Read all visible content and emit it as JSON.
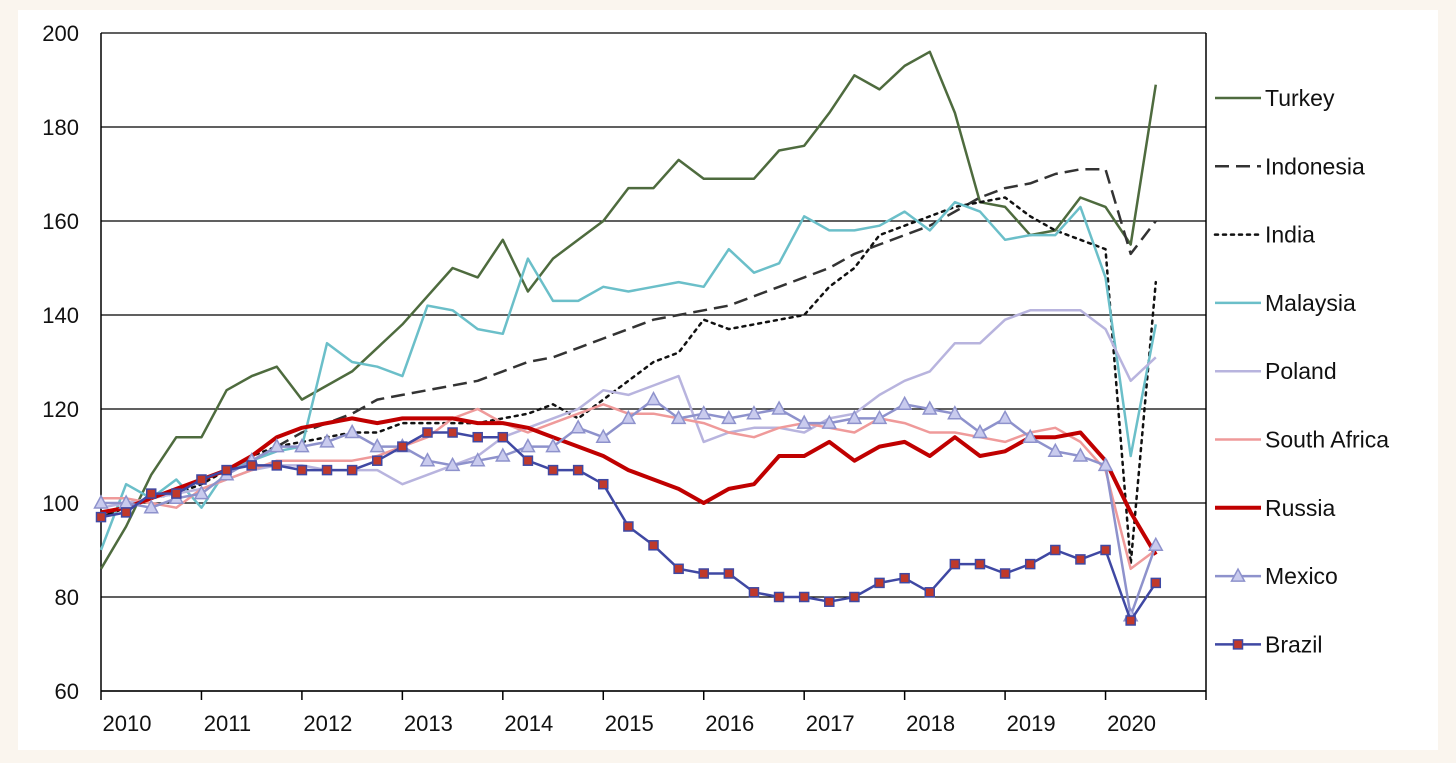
{
  "chart_data": {
    "type": "line",
    "title": "",
    "xlabel": "",
    "ylabel": "",
    "ylim": [
      60,
      200
    ],
    "xlim": [
      2010,
      2021
    ],
    "y_ticks": [
      60,
      80,
      100,
      120,
      140,
      160,
      180,
      200
    ],
    "x_ticks": [
      2010,
      2011,
      2012,
      2013,
      2014,
      2015,
      2016,
      2017,
      2018,
      2019,
      2020
    ],
    "x_tick_labels": [
      "2010",
      "2011",
      "2012",
      "2013",
      "2014",
      "2015",
      "2016",
      "2017",
      "2018",
      "2019",
      "2020"
    ],
    "grid": "horizontal",
    "legend_position": "right",
    "x": [
      2010.0,
      2010.25,
      2010.5,
      2010.75,
      2011.0,
      2011.25,
      2011.5,
      2011.75,
      2012.0,
      2012.25,
      2012.5,
      2012.75,
      2013.0,
      2013.25,
      2013.5,
      2013.75,
      2014.0,
      2014.25,
      2014.5,
      2014.75,
      2015.0,
      2015.25,
      2015.5,
      2015.75,
      2016.0,
      2016.25,
      2016.5,
      2016.75,
      2017.0,
      2017.25,
      2017.5,
      2017.75,
      2018.0,
      2018.25,
      2018.5,
      2018.75,
      2019.0,
      2019.25,
      2019.5,
      2019.75,
      2020.0,
      2020.25,
      2020.5
    ],
    "series": [
      {
        "name": "Turkey",
        "color": "#4e6b3e",
        "style": "solid",
        "width": 2.5,
        "marker": "none",
        "values": [
          86,
          95,
          106,
          114,
          114,
          124,
          127,
          129,
          122,
          125,
          128,
          133,
          138,
          144,
          150,
          148,
          156,
          145,
          152,
          156,
          160,
          167,
          167,
          173,
          169,
          169,
          169,
          175,
          176,
          183,
          191,
          188,
          193,
          196,
          183,
          164,
          163,
          157,
          158,
          165,
          163,
          155,
          189
        ]
      },
      {
        "name": "Indonesia",
        "color": "#333333",
        "style": "dashed",
        "width": 2.5,
        "marker": "none",
        "values": [
          97,
          99,
          101,
          103,
          105,
          107,
          109,
          112,
          115,
          117,
          119,
          122,
          123,
          124,
          125,
          126,
          128,
          130,
          131,
          133,
          135,
          137,
          139,
          140,
          141,
          142,
          144,
          146,
          148,
          150,
          153,
          155,
          157,
          159,
          162,
          165,
          167,
          168,
          170,
          171,
          171,
          153,
          160
        ]
      },
      {
        "name": "India",
        "color": "#111111",
        "style": "dotted",
        "width": 2.5,
        "marker": "none",
        "values": [
          97,
          99,
          101,
          102,
          104,
          107,
          110,
          112,
          113,
          114,
          115,
          115,
          117,
          117,
          117,
          117,
          118,
          119,
          121,
          118,
          122,
          126,
          130,
          132,
          139,
          137,
          138,
          139,
          140,
          146,
          150,
          157,
          159,
          161,
          163,
          164,
          165,
          161,
          158,
          156,
          154,
          87,
          147
        ]
      },
      {
        "name": "Malaysia",
        "color": "#6bbfc9",
        "style": "solid",
        "width": 2.5,
        "marker": "none",
        "values": [
          90,
          104,
          101,
          105,
          99,
          107,
          109,
          111,
          112,
          134,
          130,
          129,
          127,
          142,
          141,
          137,
          136,
          152,
          143,
          143,
          146,
          145,
          146,
          147,
          146,
          154,
          149,
          151,
          161,
          158,
          158,
          159,
          162,
          158,
          164,
          162,
          156,
          157,
          157,
          163,
          148,
          110,
          138
        ]
      },
      {
        "name": "Poland",
        "color": "#b8b4de",
        "style": "solid",
        "width": 2.5,
        "marker": "none",
        "values": [
          99,
          100,
          101,
          102,
          103,
          105,
          107,
          108,
          108,
          107,
          107,
          107,
          104,
          106,
          108,
          110,
          114,
          116,
          118,
          120,
          124,
          123,
          125,
          127,
          113,
          115,
          116,
          116,
          115,
          118,
          119,
          123,
          126,
          128,
          134,
          134,
          139,
          141,
          141,
          141,
          137,
          126,
          131
        ]
      },
      {
        "name": "South Africa",
        "color": "#ef9a9a",
        "style": "solid",
        "width": 2.5,
        "marker": "none",
        "values": [
          101,
          101,
          100,
          99,
          103,
          105,
          107,
          109,
          109,
          109,
          109,
          110,
          112,
          114,
          118,
          120,
          117,
          115,
          117,
          119,
          121,
          119,
          119,
          118,
          117,
          115,
          114,
          116,
          117,
          116,
          115,
          118,
          117,
          115,
          115,
          114,
          113,
          115,
          116,
          113,
          107,
          86,
          90
        ]
      },
      {
        "name": "Russia",
        "color": "#c00000",
        "style": "solid",
        "width": 4,
        "marker": "none",
        "values": [
          98,
          99,
          101,
          103,
          105,
          107,
          110,
          114,
          116,
          117,
          118,
          117,
          118,
          118,
          118,
          117,
          117,
          116,
          114,
          112,
          110,
          107,
          105,
          103,
          100,
          103,
          104,
          110,
          110,
          113,
          109,
          112,
          113,
          110,
          114,
          110,
          111,
          114,
          114,
          115,
          109,
          98,
          89
        ]
      },
      {
        "name": "Mexico",
        "color": "#8e92cc",
        "style": "solid",
        "width": 2.5,
        "marker": "triangle",
        "values": [
          100,
          100,
          99,
          101,
          102,
          106,
          109,
          112,
          112,
          113,
          115,
          112,
          112,
          109,
          108,
          109,
          110,
          112,
          112,
          116,
          114,
          118,
          122,
          118,
          119,
          118,
          119,
          120,
          117,
          117,
          118,
          118,
          121,
          120,
          119,
          115,
          118,
          114,
          111,
          110,
          108,
          76,
          91
        ]
      },
      {
        "name": "Brazil",
        "color": "#3f48a3",
        "style": "solid",
        "width": 2.5,
        "marker": "square",
        "values": [
          97,
          98,
          102,
          102,
          105,
          107,
          108,
          108,
          107,
          107,
          107,
          109,
          112,
          115,
          115,
          114,
          114,
          109,
          107,
          107,
          104,
          95,
          91,
          86,
          85,
          85,
          81,
          80,
          80,
          79,
          80,
          83,
          84,
          81,
          87,
          87,
          85,
          87,
          90,
          88,
          90,
          75,
          83
        ]
      }
    ]
  }
}
